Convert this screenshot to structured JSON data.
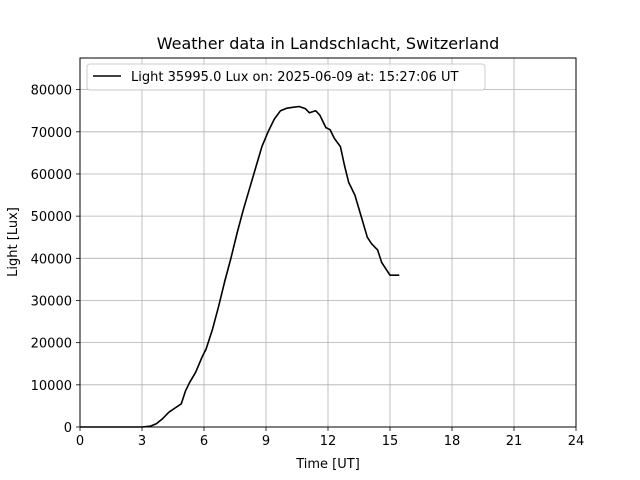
{
  "chart_data": {
    "type": "line",
    "title": "Weather data in Landschlacht, Switzerland",
    "xlabel": "Time [UT]",
    "ylabel": "Light [Lux]",
    "xlim": [
      0,
      24
    ],
    "ylim": [
      0,
      87500
    ],
    "x_ticks": [
      0,
      3,
      6,
      9,
      12,
      15,
      18,
      21,
      24
    ],
    "y_ticks": [
      0,
      10000,
      20000,
      30000,
      40000,
      50000,
      60000,
      70000,
      80000
    ],
    "grid": true,
    "legend_position": "top-left",
    "series": [
      {
        "name": "Light 35995.0 Lux on: 2025-06-09 at: 15:27:06 UT",
        "color": "#000000",
        "x": [
          0.0,
          1.0,
          2.0,
          3.0,
          3.4,
          3.7,
          4.0,
          4.3,
          4.6,
          4.9,
          5.1,
          5.3,
          5.6,
          5.9,
          6.1,
          6.4,
          6.7,
          7.0,
          7.3,
          7.6,
          7.9,
          8.2,
          8.5,
          8.8,
          9.1,
          9.4,
          9.7,
          10.0,
          10.3,
          10.6,
          10.9,
          11.1,
          11.4,
          11.6,
          11.9,
          12.1,
          12.3,
          12.6,
          12.8,
          13.0,
          13.3,
          13.6,
          13.9,
          14.1,
          14.4,
          14.6,
          14.8,
          15.0,
          15.2,
          15.35,
          15.45
        ],
        "y": [
          0,
          0,
          0,
          0,
          200,
          800,
          2000,
          3500,
          4500,
          5500,
          8500,
          10500,
          13000,
          16500,
          18500,
          23000,
          28500,
          34500,
          40000,
          46000,
          51500,
          56500,
          61500,
          66500,
          70000,
          73000,
          75000,
          75600,
          75800,
          76000,
          75500,
          74500,
          75000,
          74000,
          71000,
          70500,
          68500,
          66500,
          62000,
          58000,
          55000,
          50000,
          45000,
          43500,
          42000,
          39000,
          37500,
          36000,
          35995,
          35995,
          35995
        ]
      }
    ]
  }
}
